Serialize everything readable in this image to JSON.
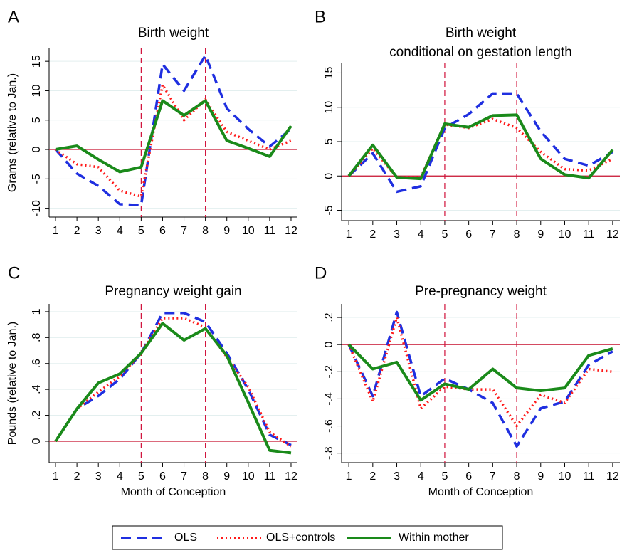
{
  "chart_data": [
    {
      "type": "line",
      "label": "A",
      "title": "Birth weight",
      "ylabel": "Grams (relative to Jan.)",
      "x": [
        1,
        2,
        3,
        4,
        5,
        6,
        7,
        8,
        9,
        10,
        11,
        12
      ],
      "xlim": [
        0.7,
        12.3
      ],
      "xticks": [
        1,
        2,
        3,
        4,
        5,
        6,
        7,
        8,
        9,
        10,
        11,
        12
      ],
      "ylim": [
        -11.5,
        17.2
      ],
      "yticks": [
        15,
        10,
        5,
        0,
        -5,
        -10
      ],
      "grid": true,
      "vlines": [
        5,
        8
      ],
      "hline": 0,
      "series": [
        {
          "name": "OLS",
          "color": "#1f2fe0",
          "style": "dashed",
          "values": [
            0,
            -4.1,
            -6.2,
            -9.3,
            -9.5,
            14.5,
            10,
            16,
            7,
            3.5,
            0.5,
            3.5
          ]
        },
        {
          "name": "OLS+controls",
          "color": "#ff1a1a",
          "style": "dotted",
          "values": [
            0,
            -2.5,
            -3,
            -7,
            -8,
            11,
            5,
            8.5,
            3,
            1.5,
            0,
            1.5
          ]
        },
        {
          "name": "Within mother",
          "color": "#1a8a1a",
          "style": "solid",
          "values": [
            0,
            0.6,
            -1.7,
            -3.8,
            -3,
            8.3,
            5.8,
            8.3,
            1.5,
            0.2,
            -1.2,
            4
          ]
        }
      ]
    },
    {
      "type": "line",
      "label": "B",
      "title": "Birth weight",
      "subtitle": "conditional on gestation length",
      "x": [
        1,
        2,
        3,
        4,
        5,
        6,
        7,
        8,
        9,
        10,
        11,
        12
      ],
      "xlim": [
        0.7,
        12.3
      ],
      "xticks": [
        1,
        2,
        3,
        4,
        5,
        6,
        7,
        8,
        9,
        10,
        11,
        12
      ],
      "ylim": [
        -6.5,
        16.5
      ],
      "yticks": [
        15,
        10,
        5,
        0,
        -5
      ],
      "grid": true,
      "vlines": [
        5,
        8
      ],
      "hline": 0,
      "series": [
        {
          "name": "OLS",
          "color": "#1f2fe0",
          "style": "dashed",
          "values": [
            0,
            3.3,
            -2.3,
            -1.5,
            7,
            9,
            12,
            12,
            6.5,
            2.5,
            1.5,
            3.5
          ]
        },
        {
          "name": "OLS+controls",
          "color": "#ff1a1a",
          "style": "dotted",
          "values": [
            0,
            4,
            -0.2,
            -0.2,
            7.5,
            7,
            8.3,
            7,
            3.5,
            1,
            0.8,
            2.5
          ]
        },
        {
          "name": "Within mother",
          "color": "#1a8a1a",
          "style": "solid",
          "values": [
            0,
            4.5,
            -0.2,
            -0.4,
            7.6,
            7.1,
            8.8,
            8.9,
            2.5,
            0.2,
            -0.3,
            3.8
          ]
        }
      ]
    },
    {
      "type": "line",
      "label": "C",
      "title": "Pregnancy weight gain",
      "ylabel": "Pounds (relative to Jan.)",
      "xlabel": "Month of Conception",
      "x": [
        1,
        2,
        3,
        4,
        5,
        6,
        7,
        8,
        9,
        10,
        11,
        12
      ],
      "xlim": [
        0.7,
        12.3
      ],
      "xticks": [
        1,
        2,
        3,
        4,
        5,
        6,
        7,
        8,
        9,
        10,
        11,
        12
      ],
      "ylim": [
        -0.165,
        1.06
      ],
      "yticks": [
        1,
        {
          "value": 0.8,
          "label": ".8"
        },
        {
          "value": 0.6,
          "label": ".6"
        },
        {
          "value": 0.4,
          "label": ".4"
        },
        {
          "value": 0.2,
          "label": ".2"
        },
        0
      ],
      "grid": true,
      "vlines": [
        5,
        8
      ],
      "hline": 0,
      "series": [
        {
          "name": "OLS",
          "color": "#1f2fe0",
          "style": "dashed",
          "values": [
            0,
            0.25,
            0.35,
            0.48,
            0.68,
            0.99,
            0.99,
            0.92,
            0.68,
            0.4,
            0.05,
            -0.03
          ]
        },
        {
          "name": "OLS+controls",
          "color": "#ff1a1a",
          "style": "dotted",
          "values": [
            0,
            0.25,
            0.38,
            0.5,
            0.68,
            0.95,
            0.95,
            0.88,
            0.65,
            0.42,
            0.07,
            -0.04
          ]
        },
        {
          "name": "Within mother",
          "color": "#1a8a1a",
          "style": "solid",
          "values": [
            0,
            0.25,
            0.45,
            0.52,
            0.68,
            0.91,
            0.78,
            0.87,
            0.66,
            0.3,
            -0.07,
            -0.09
          ]
        }
      ]
    },
    {
      "type": "line",
      "label": "D",
      "title": "Pre-pregnancy weight",
      "xlabel": "Month of Conception",
      "x": [
        1,
        2,
        3,
        4,
        5,
        6,
        7,
        8,
        9,
        10,
        11,
        12
      ],
      "xlim": [
        0.7,
        12.3
      ],
      "xticks": [
        1,
        2,
        3,
        4,
        5,
        6,
        7,
        8,
        9,
        10,
        11,
        12
      ],
      "ylim": [
        -0.87,
        0.3
      ],
      "yticks": [
        {
          "value": 0.2,
          "label": ".2"
        },
        0,
        {
          "value": -0.2,
          "label": "-.2"
        },
        {
          "value": -0.4,
          "label": "-.4"
        },
        {
          "value": -0.6,
          "label": "-.6"
        },
        {
          "value": -0.8,
          "label": "-.8"
        }
      ],
      "grid": true,
      "vlines": [
        5,
        8
      ],
      "hline": 0,
      "series": [
        {
          "name": "OLS",
          "color": "#1f2fe0",
          "style": "dashed",
          "values": [
            0,
            -0.38,
            0.24,
            -0.38,
            -0.25,
            -0.33,
            -0.43,
            -0.75,
            -0.47,
            -0.42,
            -0.15,
            -0.05
          ]
        },
        {
          "name": "OLS+controls",
          "color": "#ff1a1a",
          "style": "dotted",
          "values": [
            0,
            -0.42,
            0.2,
            -0.47,
            -0.31,
            -0.33,
            -0.33,
            -0.6,
            -0.37,
            -0.43,
            -0.18,
            -0.2
          ]
        },
        {
          "name": "Within mother",
          "color": "#1a8a1a",
          "style": "solid",
          "values": [
            0,
            -0.18,
            -0.13,
            -0.41,
            -0.29,
            -0.33,
            -0.18,
            -0.32,
            -0.34,
            -0.32,
            -0.08,
            -0.03
          ]
        }
      ]
    }
  ]
}
